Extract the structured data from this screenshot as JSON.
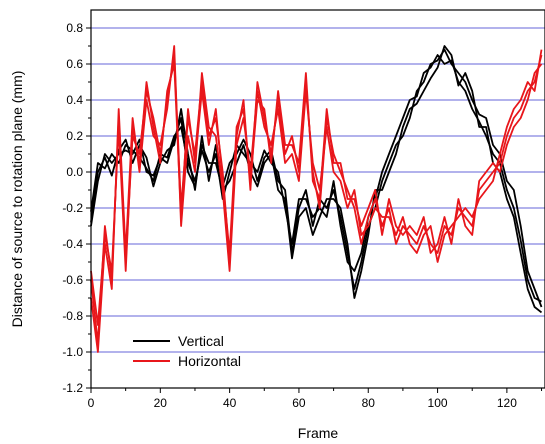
{
  "chart_data": {
    "type": "line",
    "xlabel": "Frame",
    "ylabel": "Distance of source to rotation plane (mm)",
    "xlim": [
      0,
      131
    ],
    "ylim": [
      -1.2,
      0.9
    ],
    "x_ticks": [
      0,
      20,
      40,
      60,
      80,
      100,
      120
    ],
    "y_ticks": [
      -1.2,
      -1.0,
      -0.8,
      -0.6,
      -0.4,
      -0.2,
      0.0,
      0.2,
      0.4,
      0.6,
      0.8
    ],
    "y_tick_labels": [
      "-1.2",
      "-1.0",
      "-0.8",
      "-0.6",
      "-0.4",
      "-0.2",
      "0.0",
      "0.2",
      "0.4",
      "0.6",
      "0.8"
    ],
    "grid": "horizontal",
    "grid_color": "#3333cc",
    "legend_position": "bottom-left",
    "legend": [
      {
        "label": "Vertical",
        "color": "#000000"
      },
      {
        "label": "Horizontal",
        "color": "#e8161b"
      }
    ],
    "series": [
      {
        "legend": "Vertical",
        "color": "#000000",
        "x": [
          0,
          2,
          4,
          6,
          8,
          10,
          12,
          14,
          16,
          18,
          20,
          22,
          24,
          26,
          28,
          30,
          32,
          34,
          36,
          38,
          40,
          42,
          44,
          46,
          48,
          50,
          52,
          54,
          56,
          58,
          60,
          62,
          64,
          66,
          68,
          70,
          72,
          74,
          76,
          78,
          80,
          82,
          84,
          86,
          88,
          90,
          92,
          94,
          96,
          98,
          100,
          102,
          104,
          106,
          108,
          110,
          112,
          114,
          116,
          118,
          120,
          122,
          124,
          126,
          128,
          130
        ],
        "y": [
          -0.28,
          0.0,
          0.08,
          -0.02,
          0.12,
          0.18,
          0.05,
          0.15,
          0.08,
          -0.08,
          0.05,
          0.12,
          0.15,
          0.35,
          0.1,
          -0.1,
          0.2,
          -0.05,
          0.15,
          -0.08,
          0.05,
          0.1,
          0.18,
          0.1,
          -0.05,
          0.08,
          0.12,
          -0.05,
          -0.1,
          -0.45,
          -0.2,
          -0.1,
          -0.3,
          -0.15,
          -0.2,
          -0.1,
          -0.25,
          -0.45,
          -0.65,
          -0.5,
          -0.3,
          -0.2,
          -0.05,
          0.05,
          0.15,
          0.2,
          0.3,
          0.45,
          0.5,
          0.6,
          0.62,
          0.68,
          0.6,
          0.55,
          0.5,
          0.4,
          0.32,
          0.3,
          0.15,
          0.1,
          -0.05,
          -0.1,
          -0.3,
          -0.55,
          -0.65,
          -0.75
        ]
      },
      {
        "legend": "Vertical",
        "color": "#000000",
        "x": [
          0,
          2,
          4,
          6,
          8,
          10,
          12,
          14,
          16,
          18,
          20,
          22,
          24,
          26,
          28,
          30,
          32,
          34,
          36,
          38,
          40,
          42,
          44,
          46,
          48,
          50,
          52,
          54,
          56,
          58,
          60,
          62,
          64,
          66,
          68,
          70,
          72,
          74,
          76,
          78,
          80,
          82,
          84,
          86,
          88,
          90,
          92,
          94,
          96,
          98,
          100,
          102,
          104,
          106,
          108,
          110,
          112,
          114,
          116,
          118,
          120,
          122,
          124,
          126,
          128,
          130
        ],
        "y": [
          -0.22,
          0.05,
          0.02,
          0.1,
          0.05,
          0.15,
          0.12,
          0.08,
          0.02,
          -0.05,
          0.1,
          0.08,
          0.2,
          0.25,
          0.05,
          -0.05,
          0.12,
          0.0,
          0.1,
          -0.15,
          0.0,
          0.15,
          0.1,
          0.05,
          0.0,
          0.12,
          0.05,
          0.0,
          -0.2,
          -0.4,
          -0.15,
          -0.15,
          -0.25,
          -0.2,
          -0.25,
          -0.05,
          -0.3,
          -0.5,
          -0.55,
          -0.45,
          -0.25,
          -0.15,
          0.0,
          0.1,
          0.2,
          0.3,
          0.4,
          0.42,
          0.55,
          0.58,
          0.65,
          0.6,
          0.62,
          0.5,
          0.45,
          0.35,
          0.28,
          0.2,
          0.1,
          0.05,
          -0.1,
          -0.2,
          -0.38,
          -0.6,
          -0.7,
          -0.72
        ]
      },
      {
        "legend": "Vertical",
        "color": "#000000",
        "x": [
          0,
          2,
          4,
          6,
          8,
          10,
          12,
          14,
          16,
          18,
          20,
          22,
          24,
          26,
          28,
          30,
          32,
          34,
          36,
          38,
          40,
          42,
          44,
          46,
          48,
          50,
          52,
          54,
          56,
          58,
          60,
          62,
          64,
          66,
          68,
          70,
          72,
          74,
          76,
          78,
          80,
          82,
          84,
          86,
          88,
          90,
          92,
          94,
          96,
          98,
          100,
          102,
          104,
          106,
          108,
          110,
          112,
          114,
          116,
          118,
          120,
          122,
          124,
          126,
          128,
          130
        ],
        "y": [
          -0.3,
          -0.05,
          0.1,
          0.05,
          0.1,
          0.12,
          0.1,
          0.18,
          0.0,
          -0.02,
          0.08,
          0.05,
          0.18,
          0.3,
          0.0,
          -0.08,
          0.15,
          0.05,
          0.05,
          -0.1,
          -0.05,
          0.05,
          0.15,
          0.0,
          -0.08,
          0.05,
          0.1,
          -0.1,
          -0.15,
          -0.48,
          -0.25,
          -0.2,
          -0.35,
          -0.25,
          -0.15,
          -0.15,
          -0.2,
          -0.4,
          -0.7,
          -0.55,
          -0.35,
          -0.1,
          -0.1,
          0.0,
          0.1,
          0.25,
          0.35,
          0.38,
          0.45,
          0.52,
          0.58,
          0.7,
          0.65,
          0.48,
          0.55,
          0.45,
          0.25,
          0.25,
          0.05,
          0.0,
          -0.15,
          -0.25,
          -0.45,
          -0.65,
          -0.75,
          -0.78
        ]
      },
      {
        "legend": "Horizontal",
        "color": "#e8161b",
        "x": [
          0,
          2,
          4,
          6,
          8,
          10,
          12,
          14,
          16,
          18,
          20,
          22,
          24,
          26,
          28,
          30,
          32,
          34,
          36,
          38,
          40,
          42,
          44,
          46,
          48,
          50,
          52,
          54,
          56,
          58,
          60,
          62,
          64,
          66,
          68,
          70,
          72,
          74,
          76,
          78,
          80,
          82,
          84,
          86,
          88,
          90,
          92,
          94,
          96,
          98,
          100,
          102,
          104,
          106,
          108,
          110,
          112,
          114,
          116,
          118,
          120,
          122,
          124,
          126,
          128,
          130
        ],
        "y": [
          -0.6,
          -0.95,
          -0.3,
          -0.6,
          0.3,
          -0.5,
          0.2,
          0.1,
          0.45,
          0.3,
          0.1,
          0.4,
          0.65,
          -0.2,
          0.3,
          0.1,
          0.5,
          0.2,
          0.3,
          0.0,
          -0.5,
          0.2,
          0.4,
          -0.1,
          0.5,
          0.3,
          0.1,
          0.4,
          0.1,
          0.2,
          0.0,
          0.5,
          0.0,
          -0.2,
          0.3,
          0.1,
          0.0,
          -0.1,
          -0.2,
          -0.4,
          -0.25,
          -0.15,
          -0.3,
          -0.2,
          -0.4,
          -0.3,
          -0.35,
          -0.4,
          -0.3,
          -0.4,
          -0.45,
          -0.3,
          -0.35,
          -0.2,
          -0.25,
          -0.3,
          -0.1,
          -0.05,
          0.0,
          0.05,
          0.2,
          0.3,
          0.35,
          0.45,
          0.5,
          0.65
        ]
      },
      {
        "legend": "Horizontal",
        "color": "#e8161b",
        "x": [
          0,
          2,
          4,
          6,
          8,
          10,
          12,
          14,
          16,
          18,
          20,
          22,
          24,
          26,
          28,
          30,
          32,
          34,
          36,
          38,
          40,
          42,
          44,
          46,
          48,
          50,
          52,
          54,
          56,
          58,
          60,
          62,
          64,
          66,
          68,
          70,
          72,
          74,
          76,
          78,
          80,
          82,
          84,
          86,
          88,
          90,
          92,
          94,
          96,
          98,
          100,
          102,
          104,
          106,
          108,
          110,
          112,
          114,
          116,
          118,
          120,
          122,
          124,
          126,
          128,
          130
        ],
        "y": [
          -0.7,
          -1.0,
          -0.4,
          -0.65,
          0.35,
          -0.45,
          0.3,
          0.0,
          0.4,
          0.2,
          0.15,
          0.35,
          0.7,
          -0.3,
          0.2,
          0.0,
          0.55,
          0.25,
          0.2,
          -0.1,
          -0.55,
          0.15,
          0.3,
          0.0,
          0.45,
          0.25,
          0.15,
          0.35,
          0.05,
          0.1,
          -0.05,
          0.45,
          0.05,
          -0.1,
          0.25,
          0.0,
          -0.05,
          -0.2,
          -0.1,
          -0.35,
          -0.3,
          -0.2,
          -0.25,
          -0.25,
          -0.35,
          -0.25,
          -0.4,
          -0.45,
          -0.35,
          -0.3,
          -0.5,
          -0.35,
          -0.3,
          -0.25,
          -0.2,
          -0.25,
          -0.15,
          -0.1,
          -0.05,
          0.1,
          0.25,
          0.35,
          0.4,
          0.5,
          0.45,
          0.68
        ]
      },
      {
        "legend": "Horizontal",
        "color": "#e8161b",
        "x": [
          0,
          2,
          4,
          6,
          8,
          10,
          12,
          14,
          16,
          18,
          20,
          22,
          24,
          26,
          28,
          30,
          32,
          34,
          36,
          38,
          40,
          42,
          44,
          46,
          48,
          50,
          52,
          54,
          56,
          58,
          60,
          62,
          64,
          66,
          68,
          70,
          72,
          74,
          76,
          78,
          80,
          82,
          84,
          86,
          88,
          90,
          92,
          94,
          96,
          98,
          100,
          102,
          104,
          106,
          108,
          110,
          112,
          114,
          116,
          118,
          120,
          122,
          124,
          126,
          128,
          130
        ],
        "y": [
          -0.55,
          -0.85,
          -0.35,
          -0.55,
          0.25,
          -0.55,
          0.25,
          0.05,
          0.5,
          0.25,
          0.05,
          0.45,
          0.6,
          -0.25,
          0.35,
          0.05,
          0.45,
          0.15,
          0.35,
          -0.05,
          -0.45,
          0.25,
          0.35,
          -0.05,
          0.4,
          0.35,
          0.05,
          0.45,
          0.15,
          0.15,
          0.05,
          0.55,
          -0.05,
          -0.15,
          0.35,
          0.05,
          0.05,
          -0.15,
          -0.15,
          -0.3,
          -0.2,
          -0.1,
          -0.35,
          -0.15,
          -0.3,
          -0.35,
          -0.3,
          -0.35,
          -0.25,
          -0.45,
          -0.4,
          -0.25,
          -0.4,
          -0.15,
          -0.3,
          -0.35,
          -0.05,
          0.0,
          0.05,
          0.0,
          0.15,
          0.25,
          0.3,
          0.4,
          0.55,
          0.6
        ]
      }
    ]
  }
}
